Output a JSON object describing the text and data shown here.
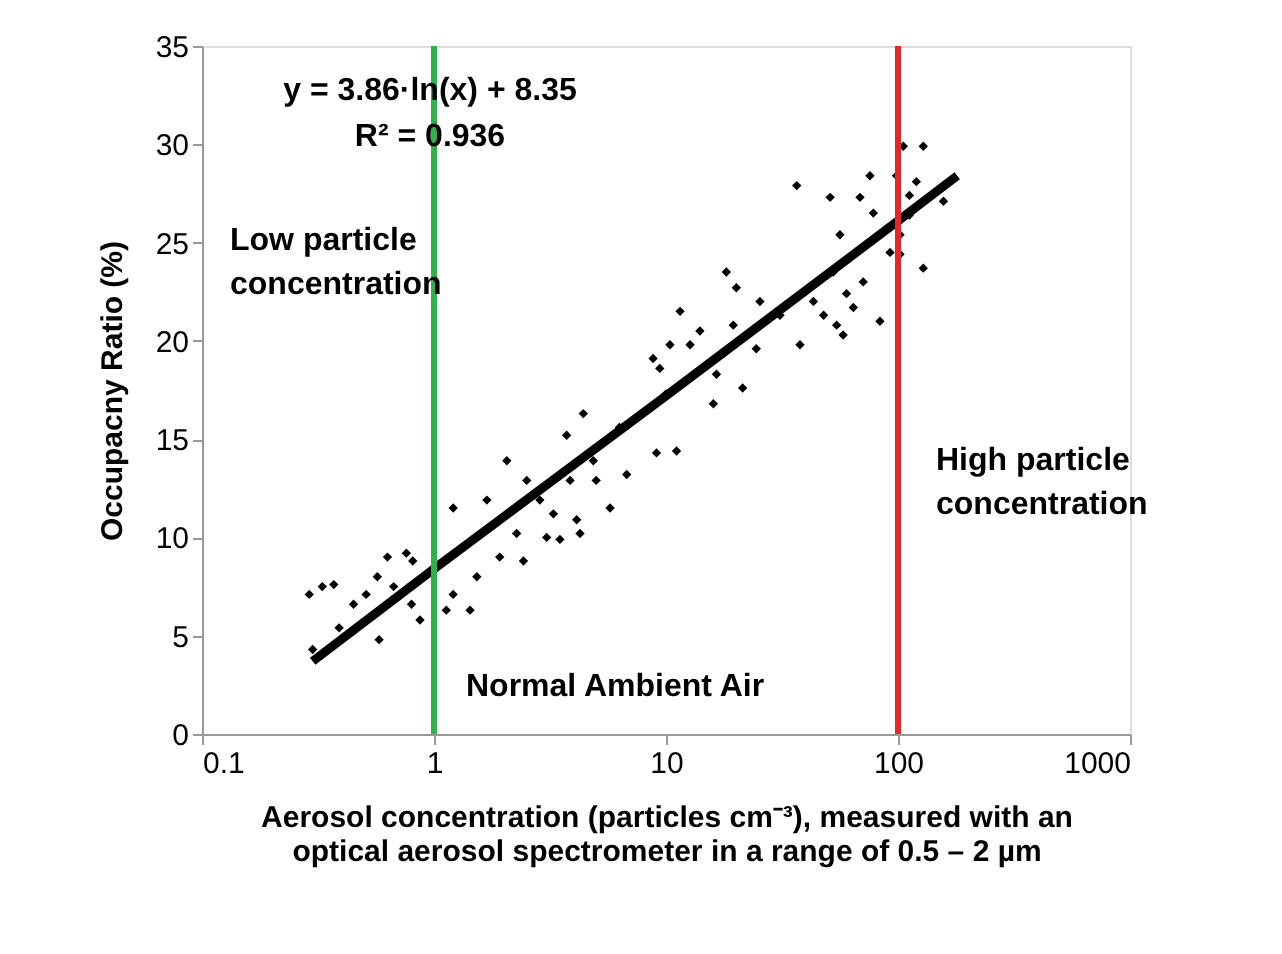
{
  "chart_data": {
    "type": "scatter",
    "xlabel": "Aerosol concentration (particles cm⁻³), measured with an optical aerosol spectrometer in a range of 0.5 – 2 µm",
    "ylabel": "Occupacny Ratio (%)",
    "log": "x",
    "grid": false,
    "xlim": [
      0.1,
      1000
    ],
    "xticks": [
      0.1,
      1,
      10,
      100,
      1000
    ],
    "ylim": [
      0,
      35
    ],
    "yticks": [
      0,
      5,
      10,
      15,
      20,
      25,
      30,
      35
    ],
    "series": [
      {
        "marker": "diamond",
        "color": "#000000",
        "x": [
          0.29,
          0.33,
          0.37,
          0.3,
          0.39,
          0.45,
          0.51,
          0.57,
          0.58,
          0.63,
          0.67,
          0.76,
          0.8,
          0.87,
          0.81,
          1.21,
          1.21,
          1.13,
          1.43,
          1.53,
          1.69,
          1.92,
          2.06,
          2.27,
          2.43,
          2.51,
          2.86,
          3.06,
          3.27,
          3.49,
          3.73,
          3.86,
          4.12,
          4.26,
          4.4,
          4.86,
          5.0,
          5.74,
          6.77,
          6.3,
          9.1,
          8.8,
          11.5,
          11.1,
          10.0,
          12.7,
          9.4,
          10.4,
          14.0,
          16.5,
          16.0,
          18.2,
          19.5,
          20.1,
          21.4,
          24.5,
          25.4,
          31,
          36.6,
          37.8,
          43.2,
          47.8,
          51,
          52.6,
          54.4,
          56.2,
          58,
          60,
          64.2,
          68.6,
          70.8,
          75.7,
          78.3,
          83.6,
          92.4,
          98.6,
          105.4,
          128.5,
          102,
          112,
          120,
          128.5,
          112,
          157,
          174,
          102
        ],
        "values": [
          7.1,
          7.5,
          7.6,
          4.3,
          5.4,
          6.6,
          7.1,
          8.0,
          4.8,
          9.0,
          7.5,
          9.2,
          6.6,
          5.8,
          8.8,
          11.5,
          7.1,
          6.3,
          6.3,
          8.0,
          11.9,
          9.0,
          13.9,
          10.2,
          8.8,
          12.9,
          11.9,
          10.0,
          11.2,
          9.9,
          15.2,
          12.9,
          10.9,
          10.2,
          16.3,
          13.9,
          12.9,
          11.5,
          13.2,
          15.6,
          14.3,
          19.1,
          21.5,
          14.4,
          17.3,
          19.8,
          18.6,
          19.8,
          20.5,
          18.3,
          16.8,
          23.5,
          20.8,
          22.7,
          17.6,
          19.6,
          22.0,
          21.3,
          27.9,
          19.8,
          22.0,
          21.3,
          27.3,
          23.5,
          20.8,
          25.4,
          20.3,
          22.4,
          21.7,
          27.3,
          23.0,
          28.4,
          26.5,
          21.0,
          24.5,
          28.4,
          29.9,
          29.9,
          25.4,
          27.4,
          28.1,
          23.7,
          26.4,
          27.1,
          28.3,
          24.4
        ]
      },
      {
        "type": "line",
        "color": "#000000",
        "x": [
          0.3,
          1,
          10,
          100,
          180
        ],
        "values": [
          3.7,
          8.4,
          17.2,
          26.1,
          28.4
        ]
      }
    ],
    "ref_lines": [
      {
        "axis": "x",
        "value": 1,
        "color": "#2db34a"
      },
      {
        "axis": "x",
        "value": 100,
        "color": "#e8262a"
      }
    ],
    "annotations": [
      "y = 3.86·ln(x) + 8.35",
      "R² = 0.936",
      "Low particle concentration",
      "High particle concentration",
      "Normal Ambient Air"
    ]
  }
}
